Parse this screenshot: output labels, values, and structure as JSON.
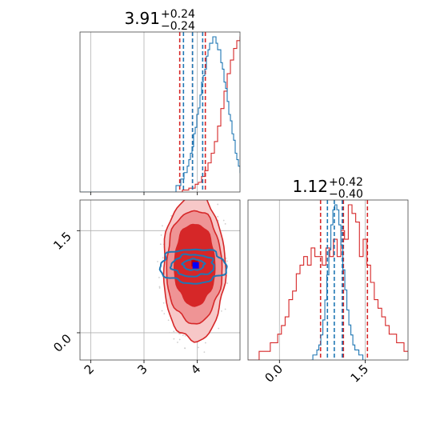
{
  "chart_data": {
    "type": "corner",
    "parameters": [
      {
        "median": 3.91,
        "plus": 0.24,
        "minus": 0.24,
        "value_text": "3.91",
        "plus_text": "+0.24",
        "minus_text": "−0.24"
      },
      {
        "median": 1.12,
        "plus": 0.42,
        "minus": 0.4,
        "value_text": "1.12",
        "plus_text": "+0.42",
        "minus_text": "−0.40"
      }
    ],
    "axes": {
      "x1": {
        "range": [
          1.8,
          4.8
        ],
        "ticks": [
          2,
          3,
          4
        ],
        "tick_labels": [
          "2",
          "3",
          "4"
        ]
      },
      "x2": {
        "range": [
          -0.55,
          2.25
        ],
        "ticks": [
          0.0,
          1.5
        ],
        "tick_labels": [
          "0.0",
          "1.5"
        ]
      },
      "y2": {
        "range": [
          -0.4,
          1.95
        ],
        "ticks": [
          0.0,
          1.5
        ],
        "tick_labels": [
          "0.0",
          "1.5"
        ]
      }
    },
    "grid": true,
    "series": [
      {
        "color": "#d62728",
        "hist1": {
          "start": 1.8,
          "step": 0.06,
          "counts": [
            0,
            0,
            0,
            0,
            0,
            0,
            0,
            0,
            0,
            0,
            0,
            0,
            0,
            0,
            0,
            0,
            0,
            0,
            0,
            0,
            0,
            0,
            0,
            0,
            0,
            0,
            0,
            0,
            0,
            0,
            0,
            0,
            1,
            1,
            2,
            2,
            4,
            5,
            8,
            11,
            15,
            20,
            26,
            34,
            43,
            52,
            61,
            68,
            74,
            78,
            80,
            79,
            75,
            70,
            63,
            55,
            46,
            37,
            29,
            22,
            16,
            11,
            7,
            5,
            3,
            2,
            1,
            1,
            1,
            0
          ]
        },
        "quantiles1": [
          3.67,
          3.91,
          4.15
        ],
        "hist2": {
          "start": -0.55,
          "step": 0.065,
          "counts": [
            0,
            0,
            0,
            1,
            1,
            1,
            2,
            2,
            3,
            4,
            5,
            7,
            8,
            10,
            11,
            12,
            11,
            13,
            12,
            12,
            11,
            13,
            12,
            14,
            12,
            15,
            14,
            18,
            17,
            16,
            12,
            14,
            11,
            9,
            7,
            6,
            5,
            4,
            3,
            3,
            2,
            2,
            1,
            1
          ]
        },
        "quantiles2": [
          0.72,
          1.12,
          1.54
        ],
        "contours": [
          {
            "cx": 3.94,
            "cy": 0.95,
            "rx": 0.58,
            "ry": 1.07,
            "fill": "#f7c8c8"
          },
          {
            "cx": 3.94,
            "cy": 0.97,
            "rx": 0.52,
            "ry": 0.83,
            "fill": "#ef9495"
          },
          {
            "cx": 3.95,
            "cy": 1.0,
            "rx": 0.38,
            "ry": 0.6,
            "fill": "#d62728"
          }
        ],
        "peak": {
          "x": 3.95,
          "y": 1.02,
          "color": "#b3000c"
        }
      },
      {
        "color": "#1f77b4",
        "hist1": {
          "start": 1.8,
          "step": 0.03,
          "counts": [
            0,
            0,
            0,
            0,
            0,
            0,
            0,
            0,
            0,
            0,
            0,
            0,
            0,
            0,
            0,
            0,
            0,
            0,
            0,
            0,
            0,
            0,
            0,
            0,
            0,
            0,
            0,
            0,
            0,
            0,
            0,
            0,
            0,
            0,
            0,
            0,
            0,
            0,
            0,
            0,
            0,
            0,
            0,
            0,
            0,
            0,
            0,
            0,
            0,
            0,
            0,
            0,
            0,
            0,
            0,
            0,
            0,
            0,
            0,
            0,
            1,
            1,
            1,
            2,
            2,
            3,
            3,
            4,
            5,
            6,
            7,
            9,
            10,
            12,
            13,
            15,
            17,
            18,
            19,
            21,
            22,
            23,
            23,
            24,
            24,
            23,
            22,
            22,
            20,
            19,
            17,
            16,
            14,
            12,
            11,
            9,
            8,
            6,
            5,
            4,
            3,
            3,
            2,
            2,
            1,
            1,
            1,
            1,
            0,
            0
          ]
        },
        "quantiles1": [
          3.74,
          3.91,
          4.1
        ],
        "hist2": {
          "start": 0.55,
          "step": 0.035,
          "counts": [
            0,
            1,
            1,
            2,
            3,
            5,
            8,
            12,
            17,
            22,
            27,
            30,
            31,
            30,
            27,
            23,
            18,
            14,
            10,
            7,
            5,
            3,
            2,
            2,
            1,
            1,
            0,
            0
          ]
        },
        "quantiles2": [
          0.84,
          0.96,
          1.1
        ],
        "contours": [
          {
            "cx": 3.92,
            "cy": 0.98,
            "rx": 0.62,
            "ry": 0.25
          },
          {
            "cx": 3.92,
            "cy": 0.99,
            "rx": 0.4,
            "ry": 0.16
          },
          {
            "cx": 3.93,
            "cy": 1.0,
            "rx": 0.2,
            "ry": 0.08
          }
        ],
        "peak": {
          "x": 3.97,
          "y": 0.99,
          "color": "#0000ff"
        }
      }
    ]
  }
}
